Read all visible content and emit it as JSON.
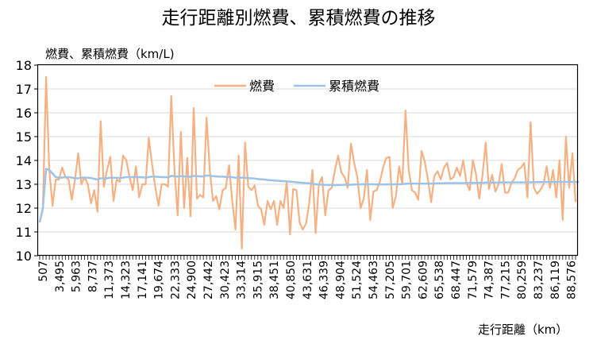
{
  "chart_data": {
    "type": "line",
    "title": "走行距離別燃費、累積燃費の推移",
    "ylabel": "燃費、累積燃費（km/L)",
    "xlabel": "走行距離（km）",
    "ylim": [
      10,
      18
    ],
    "yticks": [
      10,
      11,
      12,
      13,
      14,
      15,
      16,
      17,
      18
    ],
    "grid": true,
    "legend_position": "top-center",
    "x_tick_labels": [
      "507",
      "3,495",
      "5,963",
      "8,737",
      "11,373",
      "14,323",
      "17,141",
      "19,674",
      "22,333",
      "24,900",
      "27,442",
      "30,423",
      "33,314",
      "35,915",
      "38,451",
      "40,850",
      "43,631",
      "46,339",
      "48,904",
      "51,524",
      "54,463",
      "57,205",
      "59,701",
      "62,609",
      "65,538",
      "68,447",
      "71,579",
      "74,387",
      "77,215",
      "80,259",
      "83,237",
      "86,119",
      "88,576"
    ],
    "series": [
      {
        "name": "燃費",
        "color": "#F4B183",
        "values": [
          11.4,
          12.0,
          17.5,
          13.6,
          12.1,
          13.2,
          13.2,
          13.7,
          13.3,
          13.2,
          12.35,
          13.2,
          14.3,
          13.0,
          13.3,
          13.0,
          12.2,
          12.75,
          11.85,
          15.65,
          12.9,
          13.6,
          14.15,
          12.3,
          13.2,
          13.1,
          14.2,
          14.0,
          13.3,
          12.75,
          13.75,
          12.45,
          13.0,
          13.0,
          14.95,
          13.85,
          12.9,
          12.1,
          13.0,
          13.0,
          12.9,
          16.7,
          13.6,
          11.7,
          15.2,
          12.0,
          14.1,
          11.65,
          16.2,
          12.4,
          12.55,
          12.45,
          15.8,
          13.6,
          12.3,
          12.5,
          11.95,
          12.75,
          12.85,
          13.8,
          12.3,
          11.1,
          14.2,
          10.3,
          14.75,
          12.9,
          12.75,
          12.95,
          12.1,
          11.95,
          11.3,
          12.3,
          11.95,
          12.3,
          11.3,
          12.3,
          12.0,
          13.1,
          10.9,
          12.8,
          12.75,
          11.4,
          11.1,
          11.35,
          12.2,
          13.6,
          10.95,
          13.0,
          13.3,
          11.7,
          12.75,
          12.85,
          13.6,
          14.2,
          13.5,
          13.3,
          12.85,
          14.7,
          13.9,
          13.3,
          12.0,
          12.4,
          13.6,
          11.5,
          12.7,
          12.75,
          13.1,
          13.7,
          14.1,
          14.15,
          12.0,
          12.5,
          13.75,
          13.0,
          16.1,
          13.6,
          12.75,
          12.65,
          12.35,
          14.4,
          13.95,
          13.2,
          12.25,
          13.35,
          13.55,
          13.2,
          13.7,
          13.9,
          13.2,
          13.3,
          13.7,
          13.35,
          14.0,
          13.05,
          12.75,
          14.0,
          13.4,
          12.4,
          13.4,
          14.75,
          12.8,
          13.4,
          12.7,
          13.0,
          13.85,
          12.65,
          12.65,
          13.05,
          13.25,
          13.6,
          13.7,
          13.9,
          12.45,
          15.6,
          12.85,
          12.6,
          12.75,
          13.0,
          13.75,
          12.85,
          13.6,
          12.45,
          14.0,
          11.5,
          15.0,
          12.85,
          14.3,
          12.25
        ]
      },
      {
        "name": "累積燃費",
        "color": "#9DC3E6",
        "values": [
          11.4,
          12.0,
          13.65,
          13.6,
          13.45,
          13.3,
          13.28,
          13.28,
          13.3,
          13.3,
          13.28,
          13.25,
          13.25,
          13.28,
          13.27,
          13.28,
          13.26,
          13.23,
          13.2,
          13.25,
          13.25,
          13.25,
          13.28,
          13.27,
          13.27,
          13.26,
          13.28,
          13.3,
          13.3,
          13.3,
          13.3,
          13.3,
          13.29,
          13.28,
          13.3,
          13.32,
          13.32,
          13.31,
          13.3,
          13.3,
          13.29,
          13.35,
          13.34,
          13.32,
          13.34,
          13.33,
          13.33,
          13.31,
          13.35,
          13.34,
          13.33,
          13.33,
          13.37,
          13.36,
          13.34,
          13.33,
          13.32,
          13.32,
          13.31,
          13.3,
          13.3,
          13.28,
          13.28,
          13.28,
          13.27,
          13.26,
          13.25,
          13.24,
          13.22,
          13.21,
          13.2,
          13.18,
          13.17,
          13.16,
          13.15,
          13.14,
          13.13,
          13.12,
          13.11,
          13.1,
          13.08,
          13.07,
          13.06,
          13.05,
          13.04,
          13.02,
          13.0,
          12.99,
          12.98,
          12.97,
          12.97,
          12.97,
          12.96,
          12.97,
          12.97,
          12.98,
          12.98,
          12.98,
          12.99,
          12.99,
          13.0,
          13.0,
          13.0,
          13.0,
          13.0,
          12.99,
          12.99,
          12.99,
          12.99,
          13.0,
          13.0,
          13.0,
          13.0,
          13.01,
          13.02,
          13.03,
          13.03,
          13.03,
          13.03,
          13.03,
          13.03,
          13.03,
          13.03,
          13.03,
          13.04,
          13.04,
          13.04,
          13.05,
          13.05,
          13.05,
          13.05,
          13.05,
          13.05,
          13.05,
          13.06,
          13.06,
          13.06,
          13.06,
          13.06,
          13.07,
          13.07,
          13.07,
          13.07,
          13.07,
          13.08,
          13.08,
          13.08,
          13.08,
          13.08,
          13.08,
          13.08,
          13.08,
          13.08,
          13.08,
          13.09,
          13.09,
          13.09,
          13.09,
          13.09,
          13.09,
          13.09,
          13.09,
          13.1,
          13.1,
          13.1,
          13.1,
          13.1,
          13.1,
          13.1
        ]
      }
    ]
  }
}
